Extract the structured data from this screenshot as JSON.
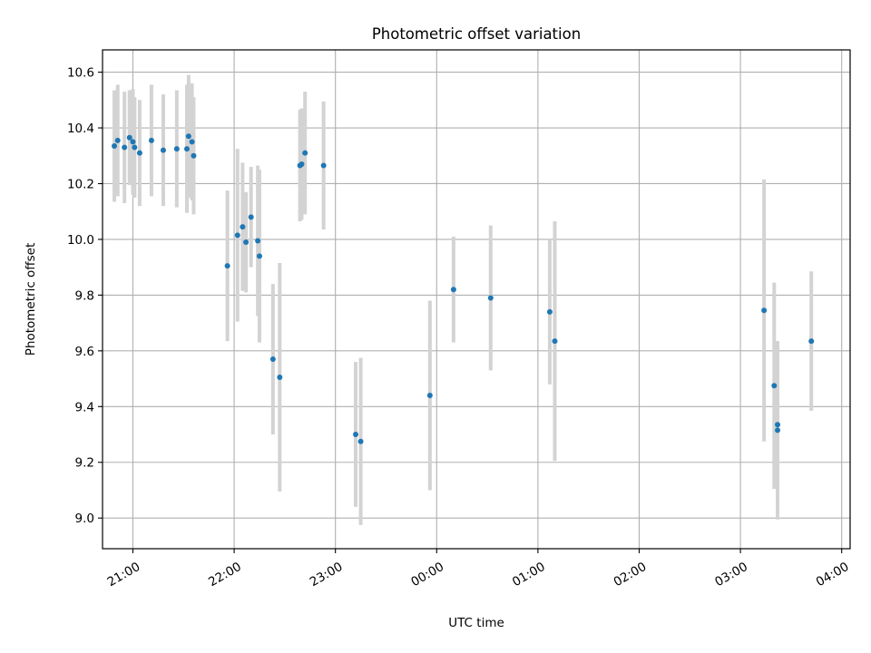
{
  "chart_data": {
    "type": "scatter",
    "title": "Photometric offset variation",
    "xlabel": "UTC time",
    "ylabel": "Photometric offset",
    "xlim": [
      "20:42",
      "04:05"
    ],
    "ylim": [
      8.89,
      10.68
    ],
    "x_ticks": [
      "21:00",
      "22:00",
      "23:00",
      "00:00",
      "01:00",
      "02:00",
      "03:00",
      "04:00"
    ],
    "y_ticks": [
      9.0,
      9.2,
      9.4,
      9.6,
      9.8,
      10.0,
      10.2,
      10.4,
      10.6
    ],
    "grid": true,
    "point_color": "#1f77b4",
    "errorbar_color": "#d3d3d3",
    "points": [
      {
        "x": "20:49",
        "y": 10.335,
        "err": 0.2
      },
      {
        "x": "20:51",
        "y": 10.355,
        "err": 0.2
      },
      {
        "x": "20:55",
        "y": 10.33,
        "err": 0.2
      },
      {
        "x": "20:58",
        "y": 10.365,
        "err": 0.17
      },
      {
        "x": "21:00",
        "y": 10.35,
        "err": 0.19
      },
      {
        "x": "21:01",
        "y": 10.33,
        "err": 0.18
      },
      {
        "x": "21:04",
        "y": 10.31,
        "err": 0.19
      },
      {
        "x": "21:11",
        "y": 10.355,
        "err": 0.2
      },
      {
        "x": "21:18",
        "y": 10.32,
        "err": 0.2
      },
      {
        "x": "21:26",
        "y": 10.325,
        "err": 0.21
      },
      {
        "x": "21:32",
        "y": 10.325,
        "err": 0.23
      },
      {
        "x": "21:33",
        "y": 10.37,
        "err": 0.22
      },
      {
        "x": "21:35",
        "y": 10.35,
        "err": 0.21
      },
      {
        "x": "21:36",
        "y": 10.3,
        "err": 0.21
      },
      {
        "x": "21:56",
        "y": 9.905,
        "err": 0.27
      },
      {
        "x": "22:02",
        "y": 10.015,
        "err": 0.31
      },
      {
        "x": "22:05",
        "y": 10.045,
        "err": 0.23
      },
      {
        "x": "22:07",
        "y": 9.99,
        "err": 0.18
      },
      {
        "x": "22:10",
        "y": 10.08,
        "err": 0.18
      },
      {
        "x": "22:14",
        "y": 9.995,
        "err": 0.27
      },
      {
        "x": "22:15",
        "y": 9.94,
        "err": 0.31
      },
      {
        "x": "22:23",
        "y": 9.57,
        "err": 0.27
      },
      {
        "x": "22:27",
        "y": 9.505,
        "err": 0.41
      },
      {
        "x": "22:39",
        "y": 10.265,
        "err": 0.2
      },
      {
        "x": "22:40",
        "y": 10.27,
        "err": 0.2
      },
      {
        "x": "22:42",
        "y": 10.31,
        "err": 0.22
      },
      {
        "x": "22:53",
        "y": 10.265,
        "err": 0.23
      },
      {
        "x": "23:12",
        "y": 9.3,
        "err": 0.26
      },
      {
        "x": "23:15",
        "y": 9.275,
        "err": 0.3
      },
      {
        "x": "23:56",
        "y": 9.44,
        "err": 0.34
      },
      {
        "x": "00:10",
        "y": 9.82,
        "err": 0.19
      },
      {
        "x": "00:32",
        "y": 9.79,
        "err": 0.26
      },
      {
        "x": "01:07",
        "y": 9.74,
        "err": 0.26
      },
      {
        "x": "01:10",
        "y": 9.635,
        "err": 0.43
      },
      {
        "x": "03:14",
        "y": 9.745,
        "err": 0.47
      },
      {
        "x": "03:20",
        "y": 9.475,
        "err": 0.37
      },
      {
        "x": "03:22",
        "y": 9.315,
        "err": 0.32
      },
      {
        "x": "03:22",
        "y": 9.335,
        "err": 0.3
      },
      {
        "x": "03:42",
        "y": 9.635,
        "err": 0.25
      }
    ]
  }
}
